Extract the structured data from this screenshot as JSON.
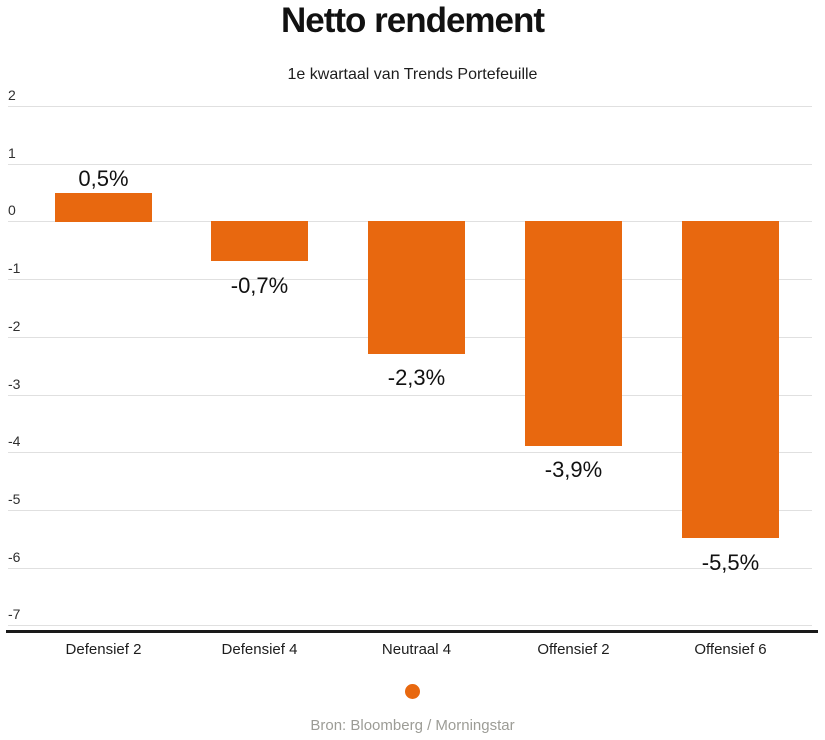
{
  "header": {
    "title": "Netto rendement",
    "subtitle": "1e kwartaal van Trends Portefeuille"
  },
  "chart_data": {
    "type": "bar",
    "title": "Netto rendement",
    "subtitle": "1e kwartaal van Trends Portefeuille",
    "categories": [
      "Defensief 2",
      "Defensief 4",
      "Neutraal 4",
      "Offensief 2",
      "Offensief 6"
    ],
    "values": [
      0.5,
      -0.7,
      -2.3,
      -3.9,
      -5.5
    ],
    "value_labels": [
      "0,5%",
      "-0,7%",
      "-2,3%",
      "-3,9%",
      "-5,5%"
    ],
    "yticks": [
      2,
      1,
      0,
      -1,
      -2,
      -3,
      -4,
      -5,
      -6,
      -7
    ],
    "ytick_labels": [
      "2",
      "1",
      "0",
      "-1",
      "-2",
      "-3",
      "-4",
      "-5",
      "-6",
      "-7"
    ],
    "ylim": [
      -7,
      2
    ],
    "grid": true,
    "legend_position": "bottom-center",
    "bar_color": "#E8680F"
  },
  "legend": {
    "marker": "dot",
    "color": "#E8680F"
  },
  "footer": {
    "source": "Bron: Bloomberg / Morningstar"
  },
  "colors": {
    "bar": "#E8680F",
    "gridline": "#E0E0E0",
    "axis_line": "#1A1A1A",
    "title_text": "#111111",
    "subtitle_text": "#1D1D1D",
    "ytick_text": "#2F2F2F",
    "xlabel_text": "#1D1D1D",
    "value_label_text": "#111111",
    "source_text": "#9C9C96",
    "background": "#FFFFFF"
  }
}
